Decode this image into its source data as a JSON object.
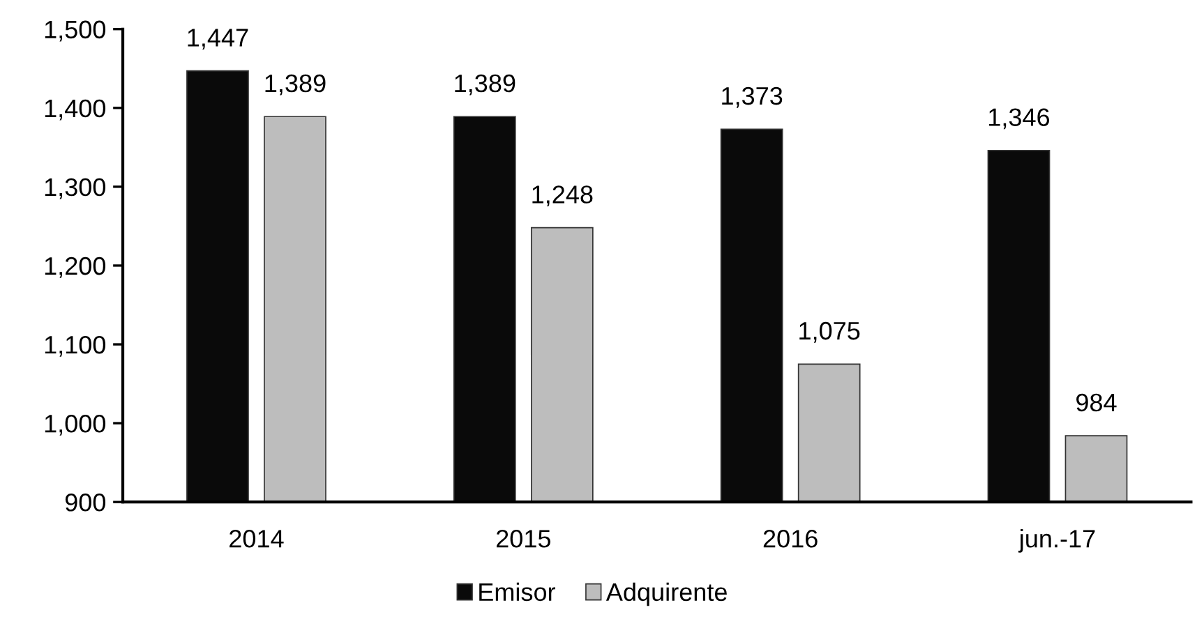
{
  "chart_data": {
    "type": "bar",
    "categories": [
      "2014",
      "2015",
      "2016",
      "jun.-17"
    ],
    "series": [
      {
        "name": "Emisor",
        "color": "#0a0a0a",
        "values": [
          1447,
          1389,
          1373,
          1346
        ],
        "value_labels": [
          "1,447",
          "1,389",
          "1,373",
          "1,346"
        ]
      },
      {
        "name": "Adquirente",
        "color": "#bdbdbd",
        "values": [
          1389,
          1248,
          1075,
          984
        ],
        "value_labels": [
          "1,389",
          "1,248",
          "1,075",
          "984"
        ]
      }
    ],
    "ylim": [
      900,
      1500
    ],
    "yticks": [
      {
        "value": 900,
        "label": "900"
      },
      {
        "value": 1000,
        "label": "1,000"
      },
      {
        "value": 1100,
        "label": "1,100"
      },
      {
        "value": 1200,
        "label": "1,200"
      },
      {
        "value": 1300,
        "label": "1,300"
      },
      {
        "value": 1400,
        "label": "1,400"
      },
      {
        "value": 1500,
        "label": "1,500"
      }
    ],
    "grid": false,
    "legend": "bottom"
  }
}
